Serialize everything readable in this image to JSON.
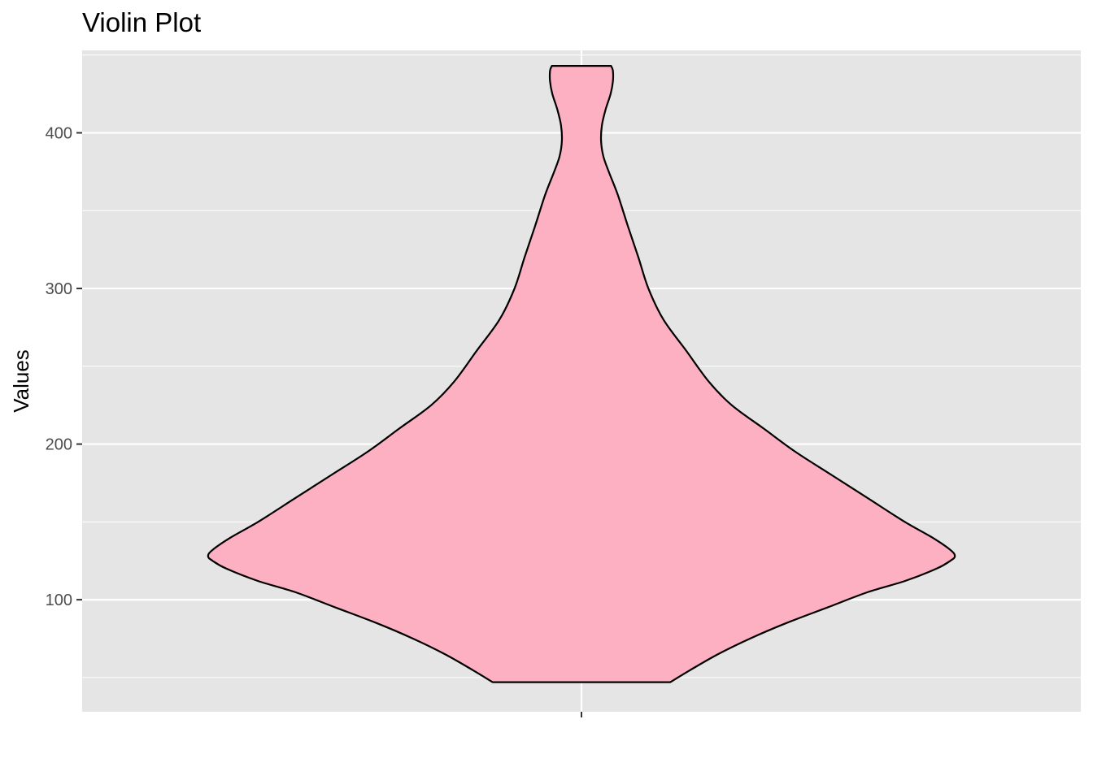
{
  "chart_data": {
    "type": "violin",
    "title": "Violin Plot",
    "xlabel": "",
    "ylabel": "Values",
    "x_ticks": [
      ""
    ],
    "y_ticks": [
      100,
      200,
      300,
      400
    ],
    "ylim": [
      28,
      453
    ],
    "grid": true,
    "fill_color": "#FCB0C2",
    "stroke_color": "#000000",
    "panel_background": "#E5E5E5",
    "series": [
      {
        "category": "",
        "min": 47,
        "max": 443,
        "density_profile": [
          {
            "value": 47,
            "half_width": 0.195
          },
          {
            "value": 55,
            "half_width": 0.24
          },
          {
            "value": 65,
            "half_width": 0.3
          },
          {
            "value": 75,
            "half_width": 0.37
          },
          {
            "value": 85,
            "half_width": 0.45
          },
          {
            "value": 95,
            "half_width": 0.54
          },
          {
            "value": 105,
            "half_width": 0.63
          },
          {
            "value": 112,
            "half_width": 0.71
          },
          {
            "value": 120,
            "half_width": 0.78
          },
          {
            "value": 125,
            "half_width": 0.81
          },
          {
            "value": 128,
            "half_width": 0.82
          },
          {
            "value": 132,
            "half_width": 0.81
          },
          {
            "value": 140,
            "half_width": 0.77
          },
          {
            "value": 150,
            "half_width": 0.71
          },
          {
            "value": 165,
            "half_width": 0.63
          },
          {
            "value": 180,
            "half_width": 0.55
          },
          {
            "value": 195,
            "half_width": 0.47
          },
          {
            "value": 210,
            "half_width": 0.4
          },
          {
            "value": 225,
            "half_width": 0.33
          },
          {
            "value": 240,
            "half_width": 0.28
          },
          {
            "value": 260,
            "half_width": 0.23
          },
          {
            "value": 280,
            "half_width": 0.18
          },
          {
            "value": 300,
            "half_width": 0.147
          },
          {
            "value": 320,
            "half_width": 0.125
          },
          {
            "value": 340,
            "half_width": 0.102
          },
          {
            "value": 360,
            "half_width": 0.08
          },
          {
            "value": 375,
            "half_width": 0.06
          },
          {
            "value": 385,
            "half_width": 0.048
          },
          {
            "value": 395,
            "half_width": 0.043
          },
          {
            "value": 405,
            "half_width": 0.045
          },
          {
            "value": 415,
            "half_width": 0.053
          },
          {
            "value": 425,
            "half_width": 0.064
          },
          {
            "value": 433,
            "half_width": 0.069
          },
          {
            "value": 440,
            "half_width": 0.069
          },
          {
            "value": 443,
            "half_width": 0.065
          }
        ]
      }
    ]
  }
}
